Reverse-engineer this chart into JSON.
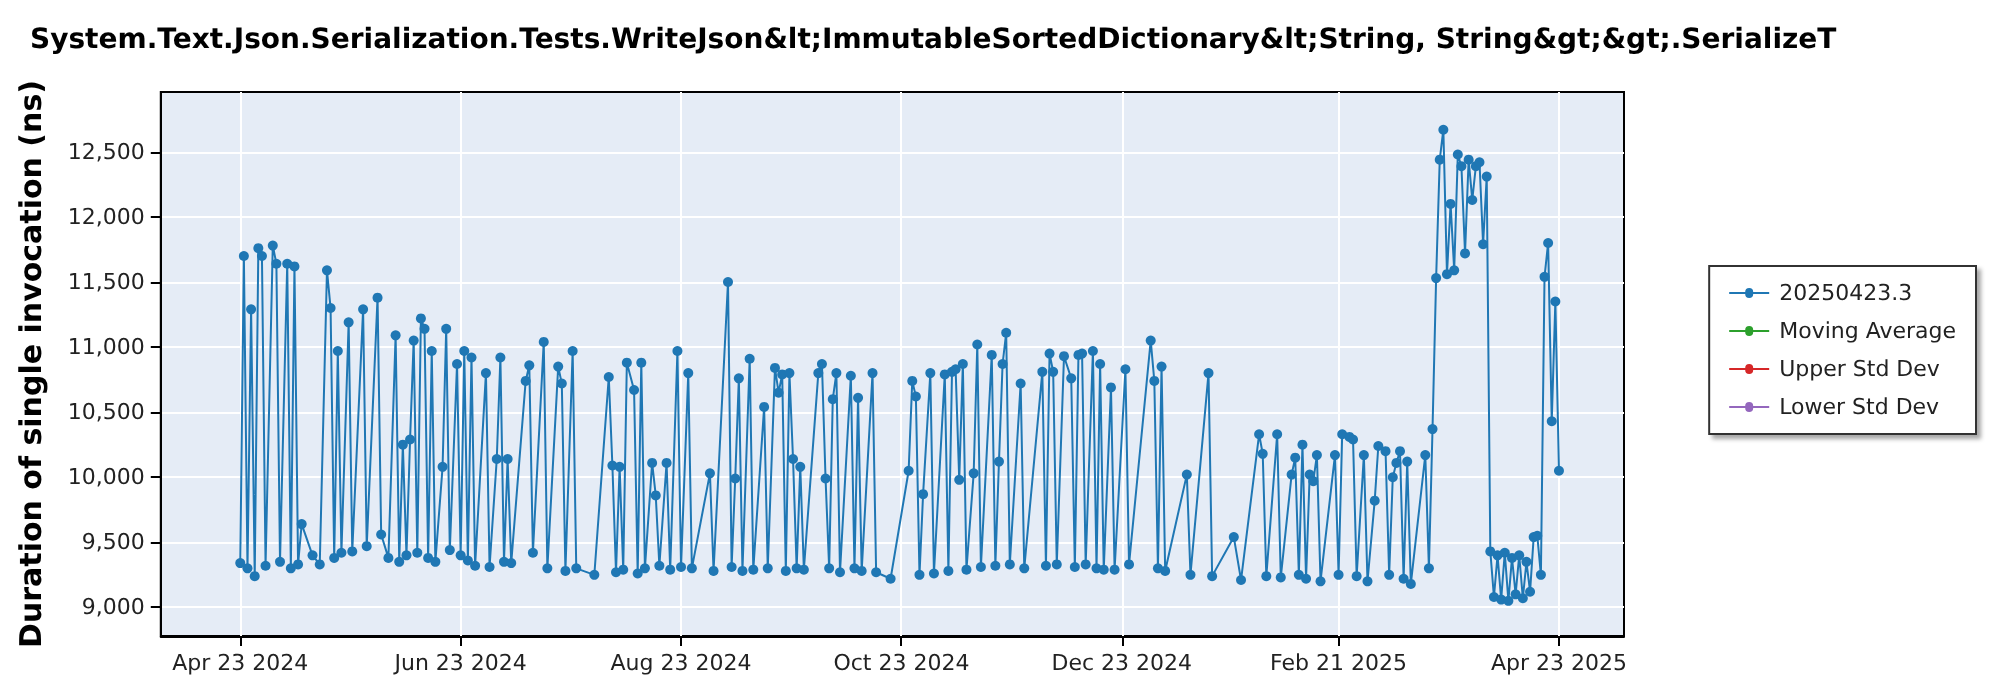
{
  "chart_data": {
    "type": "line",
    "title": "System.Text.Json.Serialization.Tests.WriteJson&lt;ImmutableSortedDictionary&lt;String, String&gt;&gt;.SerializeT",
    "ylabel": "Duration of single invocation (ns)",
    "x": [
      "2024-04-23",
      "2024-04-24",
      "2024-04-25",
      "2024-04-26",
      "2024-04-27",
      "2024-04-28",
      "2024-04-29",
      "2024-04-30",
      "2024-05-02",
      "2024-05-03",
      "2024-05-04",
      "2024-05-06",
      "2024-05-07",
      "2024-05-08",
      "2024-05-09",
      "2024-05-10",
      "2024-05-13",
      "2024-05-15",
      "2024-05-17",
      "2024-05-18",
      "2024-05-19",
      "2024-05-20",
      "2024-05-21",
      "2024-05-23",
      "2024-05-24",
      "2024-05-27",
      "2024-05-28",
      "2024-05-31",
      "2024-06-01",
      "2024-06-03",
      "2024-06-05",
      "2024-06-06",
      "2024-06-07",
      "2024-06-08",
      "2024-06-09",
      "2024-06-10",
      "2024-06-11",
      "2024-06-12",
      "2024-06-13",
      "2024-06-14",
      "2024-06-15",
      "2024-06-16",
      "2024-06-18",
      "2024-06-19",
      "2024-06-20",
      "2024-06-22",
      "2024-06-23",
      "2024-06-24",
      "2024-06-25",
      "2024-06-26",
      "2024-06-27",
      "2024-06-30",
      "2024-07-01",
      "2024-07-03",
      "2024-07-04",
      "2024-07-05",
      "2024-07-06",
      "2024-07-07",
      "2024-07-11",
      "2024-07-12",
      "2024-07-13",
      "2024-07-16",
      "2024-07-17",
      "2024-07-20",
      "2024-07-21",
      "2024-07-22",
      "2024-07-24",
      "2024-07-25",
      "2024-07-30",
      "2024-08-03",
      "2024-08-04",
      "2024-08-05",
      "2024-08-06",
      "2024-08-07",
      "2024-08-08",
      "2024-08-10",
      "2024-08-11",
      "2024-08-12",
      "2024-08-13",
      "2024-08-15",
      "2024-08-16",
      "2024-08-17",
      "2024-08-19",
      "2024-08-20",
      "2024-08-22",
      "2024-08-23",
      "2024-08-25",
      "2024-08-26",
      "2024-08-31",
      "2024-09-01",
      "2024-09-05",
      "2024-09-06",
      "2024-09-07",
      "2024-09-08",
      "2024-09-09",
      "2024-09-11",
      "2024-09-12",
      "2024-09-15",
      "2024-09-16",
      "2024-09-18",
      "2024-09-19",
      "2024-09-20",
      "2024-09-21",
      "2024-09-22",
      "2024-09-23",
      "2024-09-24",
      "2024-09-25",
      "2024-09-26",
      "2024-09-30",
      "2024-10-01",
      "2024-10-02",
      "2024-10-03",
      "2024-10-04",
      "2024-10-05",
      "2024-10-06",
      "2024-10-09",
      "2024-10-10",
      "2024-10-11",
      "2024-10-12",
      "2024-10-15",
      "2024-10-16",
      "2024-10-20",
      "2024-10-25",
      "2024-10-26",
      "2024-10-27",
      "2024-10-28",
      "2024-10-29",
      "2024-10-31",
      "2024-11-01",
      "2024-11-04",
      "2024-11-05",
      "2024-11-06",
      "2024-11-07",
      "2024-11-08",
      "2024-11-09",
      "2024-11-10",
      "2024-11-12",
      "2024-11-13",
      "2024-11-14",
      "2024-11-17",
      "2024-11-18",
      "2024-11-19",
      "2024-11-20",
      "2024-11-21",
      "2024-11-22",
      "2024-11-25",
      "2024-11-26",
      "2024-12-01",
      "2024-12-02",
      "2024-12-03",
      "2024-12-04",
      "2024-12-05",
      "2024-12-07",
      "2024-12-09",
      "2024-12-10",
      "2024-12-11",
      "2024-12-12",
      "2024-12-13",
      "2024-12-15",
      "2024-12-16",
      "2024-12-17",
      "2024-12-18",
      "2024-12-20",
      "2024-12-21",
      "2024-12-24",
      "2024-12-25",
      "2024-12-31",
      "2025-01-01",
      "2025-01-02",
      "2025-01-03",
      "2025-01-04",
      "2025-01-10",
      "2025-01-11",
      "2025-01-16",
      "2025-01-17",
      "2025-01-23",
      "2025-01-25",
      "2025-01-30",
      "2025-01-31",
      "2025-02-01",
      "2025-02-04",
      "2025-02-05",
      "2025-02-08",
      "2025-02-09",
      "2025-02-10",
      "2025-02-11",
      "2025-02-12",
      "2025-02-13",
      "2025-02-14",
      "2025-02-15",
      "2025-02-16",
      "2025-02-20",
      "2025-02-21",
      "2025-02-22",
      "2025-02-24",
      "2025-02-25",
      "2025-02-26",
      "2025-02-28",
      "2025-03-01",
      "2025-03-03",
      "2025-03-04",
      "2025-03-06",
      "2025-03-07",
      "2025-03-08",
      "2025-03-09",
      "2025-03-10",
      "2025-03-11",
      "2025-03-12",
      "2025-03-13",
      "2025-03-17",
      "2025-03-18",
      "2025-03-19",
      "2025-03-20",
      "2025-03-21",
      "2025-03-22",
      "2025-03-23",
      "2025-03-24",
      "2025-03-25",
      "2025-03-26",
      "2025-03-27",
      "2025-03-28",
      "2025-03-29",
      "2025-03-30",
      "2025-03-31",
      "2025-04-01",
      "2025-04-02",
      "2025-04-03",
      "2025-04-04",
      "2025-04-05",
      "2025-04-06",
      "2025-04-07",
      "2025-04-08",
      "2025-04-09",
      "2025-04-10",
      "2025-04-11",
      "2025-04-12",
      "2025-04-13",
      "2025-04-14",
      "2025-04-15",
      "2025-04-16",
      "2025-04-17",
      "2025-04-18",
      "2025-04-19",
      "2025-04-20",
      "2025-04-21",
      "2025-04-22",
      "2025-04-23"
    ],
    "series": [
      {
        "name": "20250423.3",
        "color": "#1f77b4",
        "values": [
          9340,
          11700,
          9300,
          11290,
          9240,
          11760,
          11700,
          9320,
          11780,
          11640,
          9350,
          11640,
          9300,
          11620,
          9330,
          9640,
          9400,
          9330,
          11590,
          11300,
          9380,
          10970,
          9420,
          11190,
          9430,
          11290,
          9470,
          11380,
          9560,
          9380,
          11090,
          9350,
          10250,
          9400,
          10290,
          11050,
          9420,
          11220,
          11140,
          9380,
          10970,
          9350,
          10080,
          11140,
          9440,
          10870,
          9400,
          10970,
          9360,
          10920,
          9320,
          10800,
          9310,
          10140,
          10920,
          9350,
          10140,
          9340,
          10740,
          10860,
          9420,
          11040,
          9300,
          10850,
          10720,
          9280,
          10970,
          9300,
          9250,
          10770,
          10090,
          9270,
          10080,
          9290,
          10880,
          10670,
          9260,
          10880,
          9300,
          10110,
          9860,
          9320,
          10110,
          9290,
          10970,
          9310,
          10800,
          9300,
          10030,
          9280,
          11500,
          9310,
          9990,
          10760,
          9280,
          10910,
          9290,
          10540,
          9300,
          10840,
          10650,
          10790,
          9280,
          10800,
          10140,
          9300,
          10080,
          9290,
          10800,
          10870,
          9990,
          9300,
          10600,
          10800,
          9270,
          10780,
          9300,
          10610,
          9280,
          10800,
          9270,
          9220,
          10050,
          10740,
          10620,
          9250,
          9870,
          10800,
          9260,
          10790,
          9280,
          10810,
          10830,
          9980,
          10870,
          9290,
          10030,
          11020,
          9310,
          10940,
          9320,
          10120,
          10870,
          11110,
          9330,
          10720,
          9300,
          10810,
          9320,
          10950,
          10810,
          9330,
          10930,
          10760,
          9310,
          10940,
          10950,
          9330,
          10970,
          9300,
          10870,
          9290,
          10690,
          9290,
          10830,
          9330,
          11050,
          10740,
          9300,
          10850,
          9280,
          10020,
          9250,
          10800,
          9240,
          9540,
          9210,
          10330,
          10180,
          9240,
          10330,
          9230,
          10020,
          10150,
          9250,
          10250,
          9220,
          10020,
          9970,
          10170,
          9200,
          10170,
          9250,
          10330,
          10310,
          10290,
          9240,
          10170,
          9200,
          9820,
          10240,
          10200,
          9250,
          10000,
          10110,
          10200,
          9220,
          10120,
          9180,
          10170,
          9300,
          10370,
          11530,
          12440,
          12670,
          11560,
          12100,
          11590,
          12480,
          12390,
          11720,
          12440,
          12130,
          12390,
          12420,
          11790,
          12310,
          9430,
          9080,
          9400,
          9060,
          9420,
          9050,
          9380,
          9100,
          9400,
          9070,
          9350,
          9120,
          9540,
          9550,
          9250,
          11540,
          11800,
          10430,
          11350,
          10050
        ]
      },
      {
        "name": "Moving Average",
        "color": "#2ca02c",
        "values": [
          null,
          null,
          null,
          null,
          null,
          null,
          null,
          null,
          null,
          null,
          null,
          null,
          null,
          null,
          null,
          null,
          null,
          null,
          null,
          null,
          null,
          null,
          null,
          null,
          null,
          null,
          null,
          null,
          null,
          null,
          null,
          null,
          null,
          null,
          null,
          null,
          null,
          null,
          null,
          null,
          null,
          null,
          null,
          null,
          null,
          null,
          null,
          null,
          null,
          null,
          null,
          null,
          null,
          null,
          null,
          null,
          null,
          null,
          null,
          null,
          null,
          null,
          null,
          null,
          null,
          null,
          null,
          null,
          null,
          null,
          null,
          null,
          null,
          null,
          null,
          null,
          null,
          null,
          null,
          null,
          null,
          null,
          null,
          null,
          null,
          null,
          null,
          null,
          null,
          null,
          null,
          null,
          null,
          null,
          null,
          null,
          null,
          null,
          null,
          null,
          null,
          null,
          null,
          null,
          null,
          null,
          null,
          null,
          null,
          null,
          null,
          null,
          null,
          null,
          null,
          null,
          null,
          null,
          null,
          null,
          null,
          null,
          null,
          null,
          null,
          null,
          null,
          null,
          null,
          null,
          null,
          null,
          null,
          null,
          null,
          null,
          null,
          null,
          null,
          null,
          null,
          null,
          null,
          null,
          null,
          null,
          null,
          null,
          null,
          null,
          null,
          null,
          null,
          null,
          null,
          null,
          null,
          null,
          null,
          null,
          null,
          null,
          null,
          null,
          null,
          null,
          null,
          null,
          null,
          null,
          null,
          null,
          null,
          null,
          null,
          null,
          null,
          null,
          null,
          null,
          null,
          null,
          null,
          null,
          null,
          null,
          null,
          null,
          null,
          null,
          null,
          null,
          null,
          null,
          null,
          null,
          null,
          null,
          null,
          null,
          null,
          null,
          null,
          null,
          null,
          null,
          null,
          null,
          null,
          null,
          null,
          null,
          null,
          null,
          null,
          null,
          null,
          null,
          null,
          null,
          null,
          null,
          null,
          null,
          null,
          null,
          null,
          null,
          null,
          null,
          null,
          null,
          null,
          null,
          null,
          null,
          null,
          null,
          null,
          null,
          null,
          null,
          null,
          null,
          null,
          null,
          null
        ]
      },
      {
        "name": "Upper Std Dev",
        "color": "#d62728",
        "values": [
          null,
          null,
          null,
          null,
          null,
          null,
          null,
          null,
          null,
          null,
          null,
          null,
          null,
          null,
          null,
          null,
          null,
          null,
          null,
          null,
          null,
          null,
          null,
          null,
          null,
          null,
          null,
          null,
          null,
          null,
          null,
          null,
          null,
          null,
          null,
          null,
          null,
          null,
          null,
          null,
          null,
          null,
          null,
          null,
          null,
          null,
          null,
          null,
          null,
          null,
          null,
          null,
          null,
          null,
          null,
          null,
          null,
          null,
          null,
          null,
          null,
          null,
          null,
          null,
          null,
          null,
          null,
          null,
          null,
          null,
          null,
          null,
          null,
          null,
          null,
          null,
          null,
          null,
          null,
          null,
          null,
          null,
          null,
          null,
          null,
          null,
          null,
          null,
          null,
          null,
          null,
          null,
          null,
          null,
          null,
          null,
          null,
          null,
          null,
          null,
          null,
          null,
          null,
          null,
          null,
          null,
          null,
          null,
          null,
          null,
          null,
          null,
          null,
          null,
          null,
          null,
          null,
          null,
          null,
          null,
          null,
          null,
          null,
          null,
          null,
          null,
          null,
          null,
          null,
          null,
          null,
          null,
          null,
          null,
          null,
          null,
          null,
          null,
          null,
          null,
          null,
          null,
          null,
          null,
          null,
          null,
          null,
          null,
          null,
          null,
          null,
          null,
          null,
          null,
          null,
          null,
          null,
          null,
          null,
          null,
          null,
          null,
          null,
          null,
          null,
          null,
          null,
          null,
          null,
          null,
          null,
          null,
          null,
          null,
          null,
          null,
          null,
          null,
          null,
          null,
          null,
          null,
          null,
          null,
          null,
          null,
          null,
          null,
          null,
          null,
          null,
          null,
          null,
          null,
          null,
          null,
          null,
          null,
          null,
          null,
          null,
          null,
          null,
          null,
          null,
          null,
          null,
          null,
          null,
          null,
          null,
          null,
          null,
          null,
          null,
          null,
          null,
          null,
          null,
          null,
          null,
          null,
          null,
          null,
          null,
          null,
          null,
          null,
          null,
          null,
          null,
          null,
          null,
          null,
          null,
          null,
          null,
          null,
          null,
          null,
          null,
          null,
          null,
          null,
          null,
          null,
          null
        ]
      },
      {
        "name": "Lower Std Dev",
        "color": "#9467bd",
        "values": [
          null,
          null,
          null,
          null,
          null,
          null,
          null,
          null,
          null,
          null,
          null,
          null,
          null,
          null,
          null,
          null,
          null,
          null,
          null,
          null,
          null,
          null,
          null,
          null,
          null,
          null,
          null,
          null,
          null,
          null,
          null,
          null,
          null,
          null,
          null,
          null,
          null,
          null,
          null,
          null,
          null,
          null,
          null,
          null,
          null,
          null,
          null,
          null,
          null,
          null,
          null,
          null,
          null,
          null,
          null,
          null,
          null,
          null,
          null,
          null,
          null,
          null,
          null,
          null,
          null,
          null,
          null,
          null,
          null,
          null,
          null,
          null,
          null,
          null,
          null,
          null,
          null,
          null,
          null,
          null,
          null,
          null,
          null,
          null,
          null,
          null,
          null,
          null,
          null,
          null,
          null,
          null,
          null,
          null,
          null,
          null,
          null,
          null,
          null,
          null,
          null,
          null,
          null,
          null,
          null,
          null,
          null,
          null,
          null,
          null,
          null,
          null,
          null,
          null,
          null,
          null,
          null,
          null,
          null,
          null,
          null,
          null,
          null,
          null,
          null,
          null,
          null,
          null,
          null,
          null,
          null,
          null,
          null,
          null,
          null,
          null,
          null,
          null,
          null,
          null,
          null,
          null,
          null,
          null,
          null,
          null,
          null,
          null,
          null,
          null,
          null,
          null,
          null,
          null,
          null,
          null,
          null,
          null,
          null,
          null,
          null,
          null,
          null,
          null,
          null,
          null,
          null,
          null,
          null,
          null,
          null,
          null,
          null,
          null,
          null,
          null,
          null,
          null,
          null,
          null,
          null,
          null,
          null,
          null,
          null,
          null,
          null,
          null,
          null,
          null,
          null,
          null,
          null,
          null,
          null,
          null,
          null,
          null,
          null,
          null,
          null,
          null,
          null,
          null,
          null,
          null,
          null,
          null,
          null,
          null,
          null,
          null,
          null,
          null,
          null,
          null,
          null,
          null,
          null,
          null,
          null,
          null,
          null,
          null,
          null,
          null,
          null,
          null,
          null,
          null,
          null,
          null,
          null,
          null,
          null,
          null,
          null,
          null,
          null,
          null,
          null,
          null,
          null,
          null,
          null,
          null,
          null
        ]
      }
    ],
    "xlim": [
      "2024-04-01",
      "2025-05-11"
    ],
    "xticks": [
      {
        "value": "2024-04-23",
        "label": "Apr 23 2024"
      },
      {
        "value": "2024-06-23",
        "label": "Jun 23 2024"
      },
      {
        "value": "2024-08-23",
        "label": "Aug 23 2024"
      },
      {
        "value": "2024-10-23",
        "label": "Oct 23 2024"
      },
      {
        "value": "2024-12-23",
        "label": "Dec 23 2024"
      },
      {
        "value": "2025-02-21",
        "label": "Feb 21 2025"
      },
      {
        "value": "2025-04-23",
        "label": "Apr 23 2025"
      }
    ],
    "ylim": [
      8780,
      12960
    ],
    "yticks": [
      {
        "value": 9000,
        "label": "9,000"
      },
      {
        "value": 9500,
        "label": "9,500"
      },
      {
        "value": 10000,
        "label": "10,000"
      },
      {
        "value": 10500,
        "label": "10,500"
      },
      {
        "value": 11000,
        "label": "11,000"
      },
      {
        "value": 11500,
        "label": "11,500"
      },
      {
        "value": 12000,
        "label": "12,000"
      },
      {
        "value": 12500,
        "label": "12,500"
      }
    ],
    "grid": true,
    "legend": "right",
    "marker": "circle",
    "line_style": "solid"
  }
}
